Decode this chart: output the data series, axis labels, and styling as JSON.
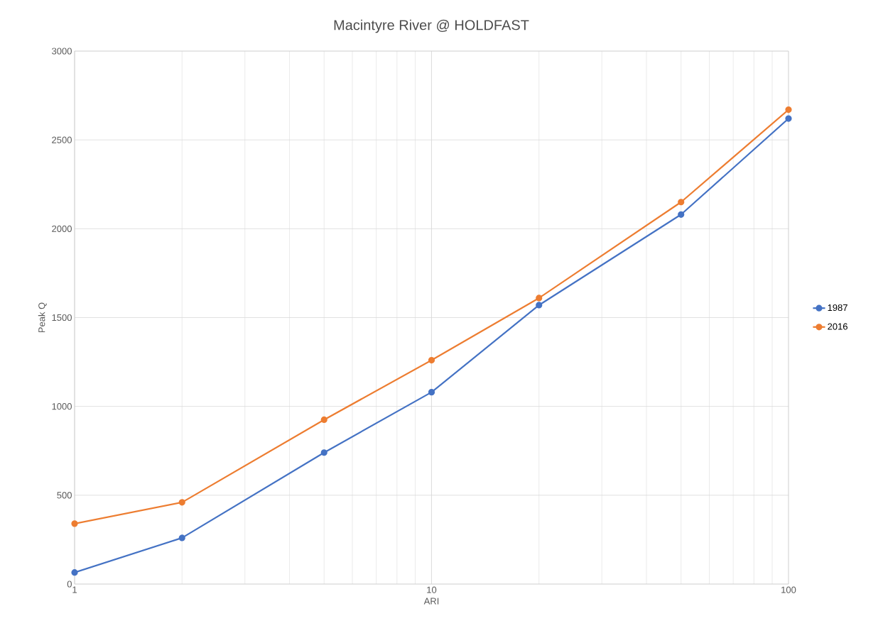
{
  "chart_data": {
    "type": "line",
    "title": "Macintyre River @ HOLDFAST",
    "xlabel": "ARI",
    "ylabel": "Peak Q",
    "log": "x",
    "x": [
      1,
      2,
      5,
      10,
      20,
      50,
      100
    ],
    "series": [
      {
        "name": "1987",
        "color": "#4472c4",
        "values": [
          65,
          260,
          740,
          1080,
          1570,
          2080,
          2620
        ]
      },
      {
        "name": "2016",
        "color": "#ed7d31",
        "values": [
          340,
          460,
          925,
          1260,
          1610,
          2150,
          2670
        ]
      }
    ],
    "xlim": [
      1,
      100
    ],
    "xticks": [
      1,
      10,
      100
    ],
    "ylim": [
      0,
      3000
    ],
    "yticks": [
      0,
      500,
      1000,
      1500,
      2000,
      2500,
      3000
    ],
    "grid": true,
    "legend": "right",
    "marker": "circle",
    "line_style": "solid"
  }
}
